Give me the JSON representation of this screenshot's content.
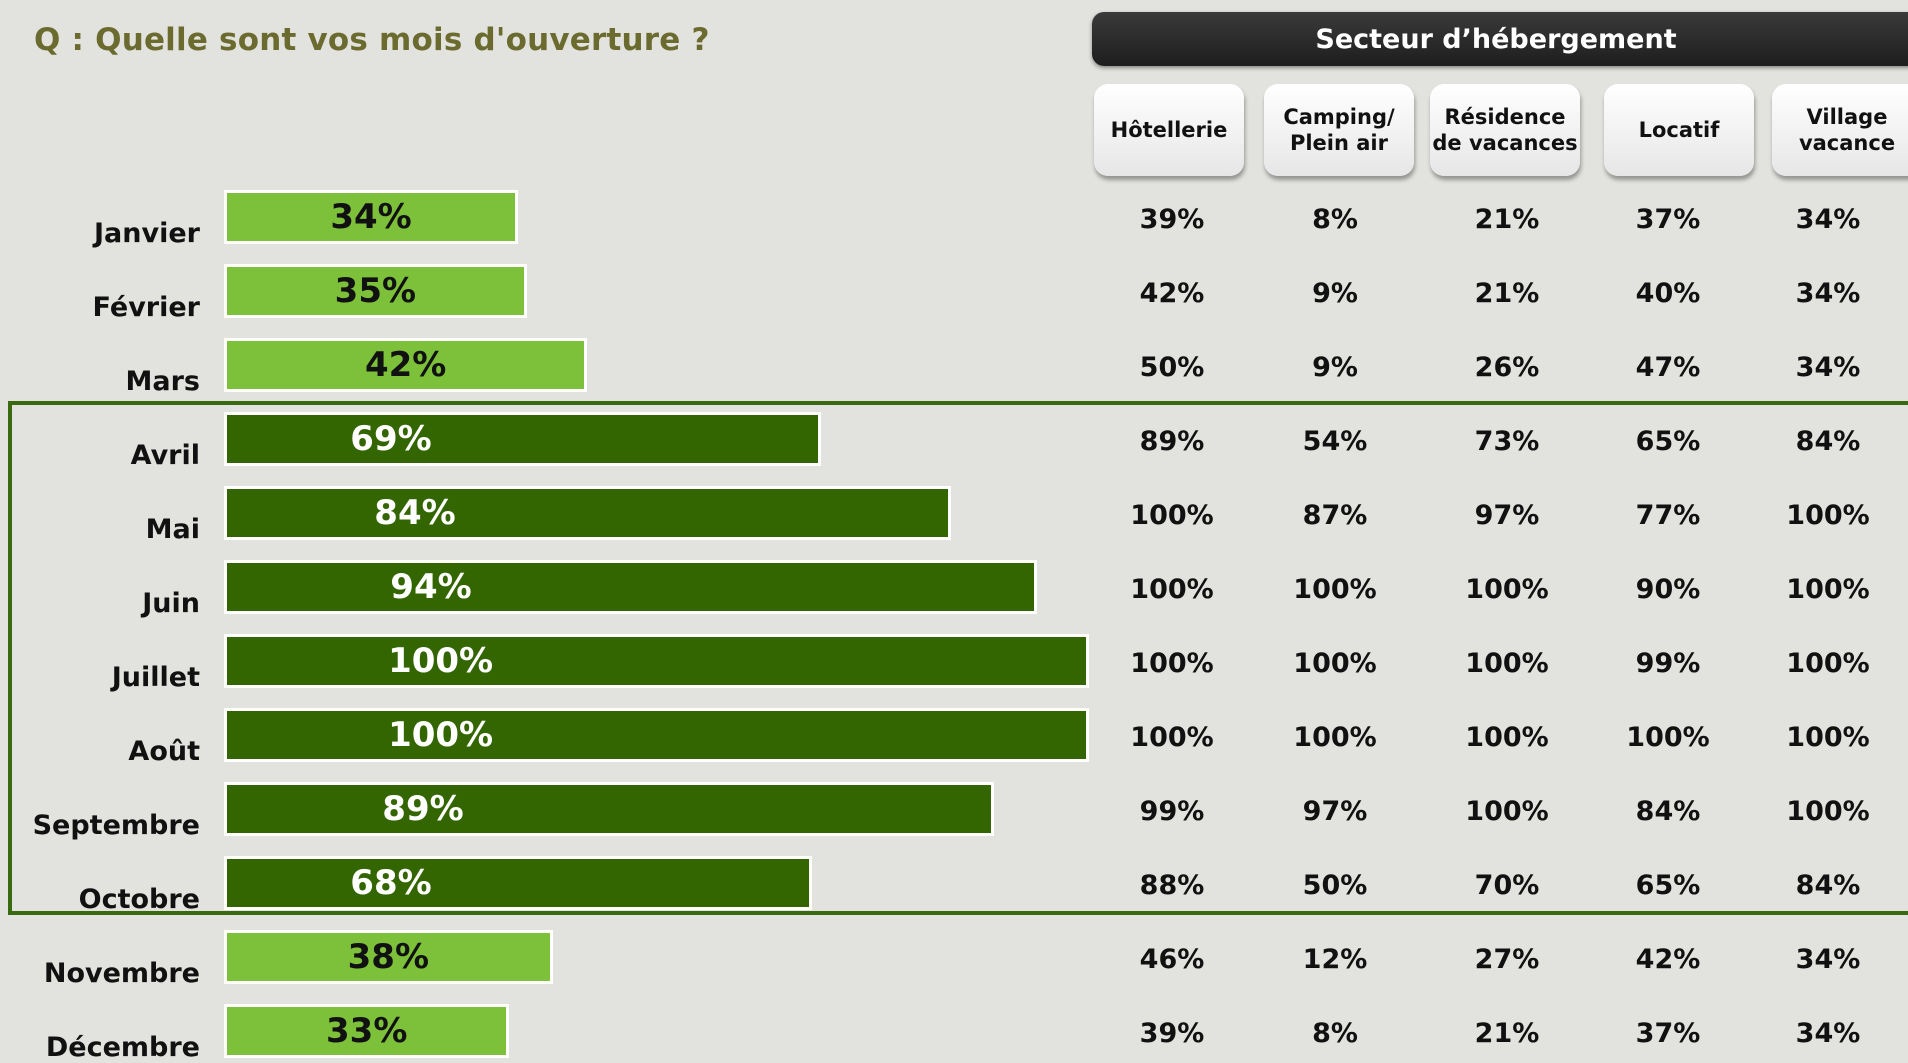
{
  "question": "Q : Quelle sont vos mois d'ouverture ?",
  "sector_header": "Secteur d’hébergement",
  "colors": {
    "light_bar": "#7dc13a",
    "dark_bar": "#336600",
    "highlight_border": "#3a6a10"
  },
  "chart_data": {
    "type": "bar",
    "orientation": "horizontal",
    "categories": [
      "Janvier",
      "Février",
      "Mars",
      "Avril",
      "Mai",
      "Juin",
      "Juillet",
      "Août",
      "Septembre",
      "Octobre",
      "Novembre",
      "Décembre"
    ],
    "values": [
      34,
      35,
      42,
      69,
      84,
      94,
      100,
      100,
      89,
      68,
      38,
      33
    ],
    "value_labels": [
      "34%",
      "35%",
      "42%",
      "69%",
      "84%",
      "94%",
      "100%",
      "100%",
      "89%",
      "68%",
      "38%",
      "33%"
    ],
    "xlim": [
      0,
      100
    ],
    "highlighted_categories": [
      "Avril",
      "Mai",
      "Juin",
      "Juillet",
      "Août",
      "Septembre",
      "Octobre"
    ]
  },
  "table": {
    "columns": [
      "Hôtellerie",
      "Camping/\nPlein air",
      "Résidence\nde vacances",
      "Locatif",
      "Village\nvacance"
    ],
    "rows": [
      [
        "39%",
        "8%",
        "21%",
        "37%",
        "34%"
      ],
      [
        "42%",
        "9%",
        "21%",
        "40%",
        "34%"
      ],
      [
        "50%",
        "9%",
        "26%",
        "47%",
        "34%"
      ],
      [
        "89%",
        "54%",
        "73%",
        "65%",
        "84%"
      ],
      [
        "100%",
        "87%",
        "97%",
        "77%",
        "100%"
      ],
      [
        "100%",
        "100%",
        "100%",
        "90%",
        "100%"
      ],
      [
        "100%",
        "100%",
        "100%",
        "99%",
        "100%"
      ],
      [
        "100%",
        "100%",
        "100%",
        "100%",
        "100%"
      ],
      [
        "99%",
        "97%",
        "100%",
        "84%",
        "100%"
      ],
      [
        "88%",
        "50%",
        "70%",
        "65%",
        "84%"
      ],
      [
        "46%",
        "12%",
        "27%",
        "42%",
        "34%"
      ],
      [
        "39%",
        "8%",
        "21%",
        "37%",
        "34%"
      ]
    ]
  }
}
